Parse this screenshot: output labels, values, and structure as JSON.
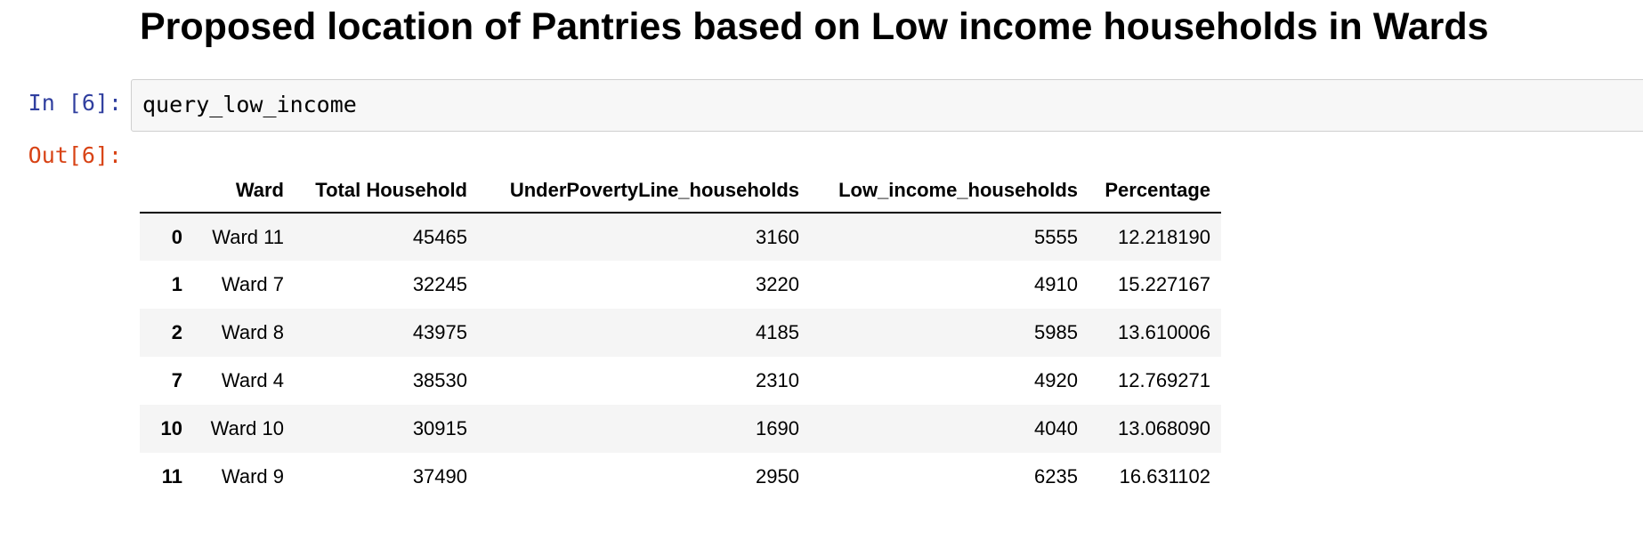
{
  "heading": "Proposed location of Pantries based on Low income households in Wards",
  "input_cell": {
    "prompt": "In [6]:",
    "code": "query_low_income"
  },
  "output_cell": {
    "prompt": "Out[6]:"
  },
  "table": {
    "columns": [
      "",
      "Ward",
      "Total Household",
      "UnderPovertyLine_households",
      "Low_income_households",
      "Percentage"
    ],
    "rows": [
      {
        "index": "0",
        "ward": "Ward 11",
        "total": "45465",
        "under": "3160",
        "low": "5555",
        "pct": "12.218190"
      },
      {
        "index": "1",
        "ward": "Ward 7",
        "total": "32245",
        "under": "3220",
        "low": "4910",
        "pct": "15.227167"
      },
      {
        "index": "2",
        "ward": "Ward 8",
        "total": "43975",
        "under": "4185",
        "low": "5985",
        "pct": "13.610006"
      },
      {
        "index": "7",
        "ward": "Ward 4",
        "total": "38530",
        "under": "2310",
        "low": "4920",
        "pct": "12.769271"
      },
      {
        "index": "10",
        "ward": "Ward 10",
        "total": "30915",
        "under": "1690",
        "low": "4040",
        "pct": "13.068090"
      },
      {
        "index": "11",
        "ward": "Ward 9",
        "total": "37490",
        "under": "2950",
        "low": "6235",
        "pct": "16.631102"
      }
    ]
  }
}
